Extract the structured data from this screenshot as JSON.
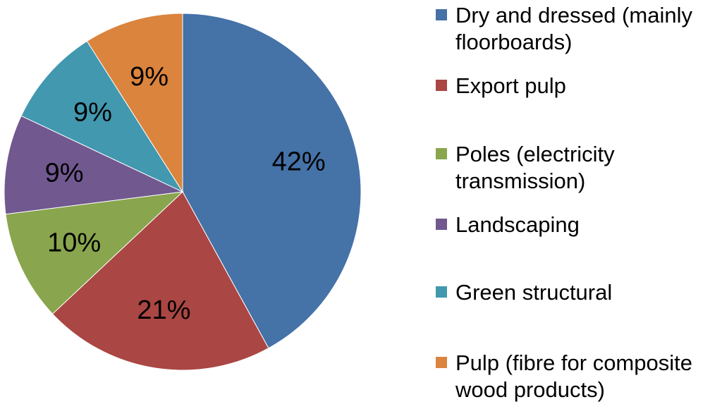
{
  "chart_data": {
    "type": "pie",
    "title": "",
    "start_angle_deg": 0,
    "direction": "clockwise",
    "slices": [
      {
        "label": "Dry and dressed (mainly\nfloorboards)",
        "value": 42,
        "value_label": "42%",
        "color": "#4572A7"
      },
      {
        "label": "Export pulp",
        "value": 21,
        "value_label": "21%",
        "color": "#AA4643"
      },
      {
        "label": "Poles (electricity\ntransmission)",
        "value": 10,
        "value_label": "10%",
        "color": "#89A54E"
      },
      {
        "label": "Landscaping",
        "value": 9,
        "value_label": "9%",
        "color": "#71588F"
      },
      {
        "label": "Green structural",
        "value": 9,
        "value_label": "9%",
        "color": "#4198AF"
      },
      {
        "label": "Pulp (fibre for composite\nwood products)",
        "value": 9,
        "value_label": "9%",
        "color": "#DB843D"
      }
    ],
    "legend_position": "right"
  }
}
